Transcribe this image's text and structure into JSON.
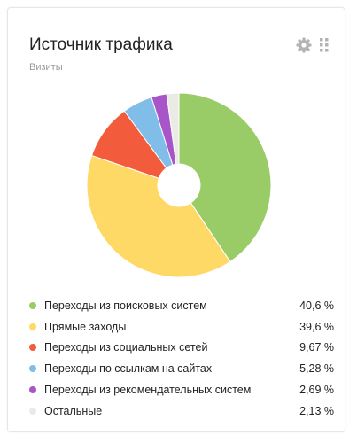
{
  "widget": {
    "title": "Источник трафика",
    "subtitle": "Визиты",
    "settings_icon": "gear-icon",
    "drag_icon": "drag-handle-icon"
  },
  "chart_data": {
    "type": "pie",
    "categories": [
      "Переходы из поисковых систем",
      "Прямые заходы",
      "Переходы из социальных сетей",
      "Переходы по ссылкам на сайтах",
      "Переходы из рекомендательных систем",
      "Остальные"
    ],
    "values": [
      40.6,
      39.6,
      9.67,
      5.28,
      2.69,
      2.13
    ],
    "value_labels": [
      "40,6 %",
      "39,6 %",
      "9,67 %",
      "5,28 %",
      "2,69 %",
      "2,13 %"
    ],
    "colors": [
      "#99cc66",
      "#ffd966",
      "#f25c3d",
      "#80bde8",
      "#a855c9",
      "#ebebe6"
    ],
    "legend_placement": "bottom"
  }
}
